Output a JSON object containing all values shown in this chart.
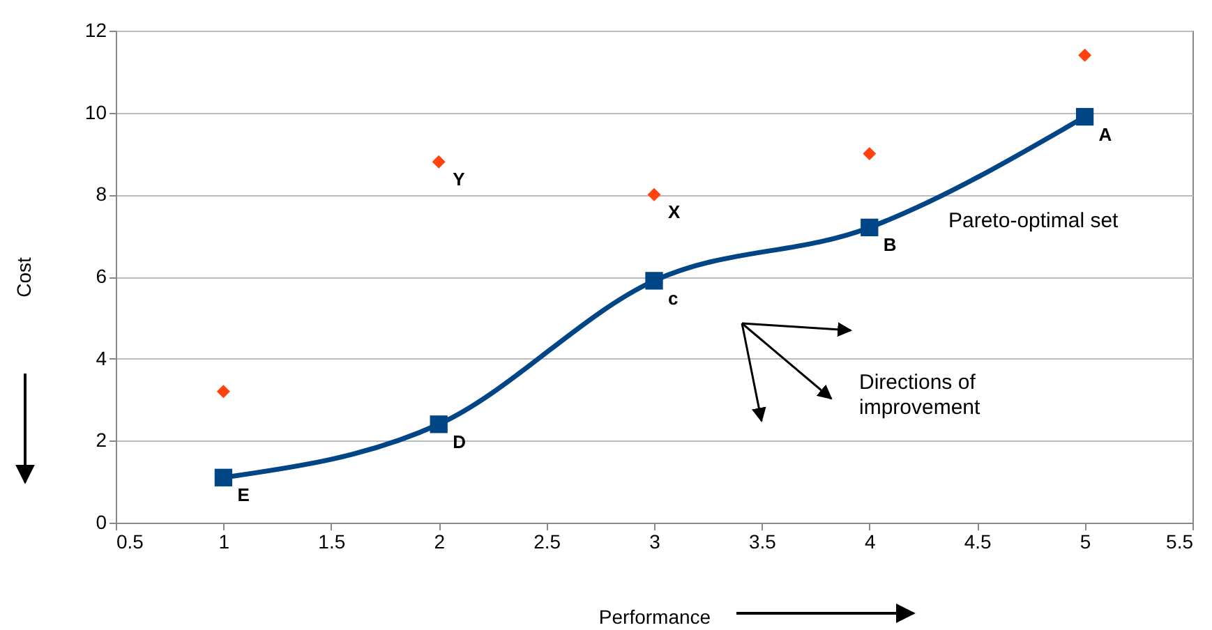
{
  "chart_data": {
    "type": "line",
    "xlabel": "Performance",
    "ylabel": "Cost",
    "x": [
      1,
      2,
      3,
      4,
      5
    ],
    "series": [
      {
        "color": "#004586",
        "values": [
          1.1,
          2.4,
          5.9,
          7.2,
          9.9
        ],
        "marker": "square"
      },
      {
        "type": "scatter",
        "color": "#ff420e",
        "values": [
          3.2,
          8.8,
          8.0,
          9.0,
          11.4
        ],
        "marker": "diamond"
      }
    ],
    "xlim": [
      0.5,
      5.5
    ],
    "xticks": [
      0.5,
      1,
      1.5,
      2,
      2.5,
      3,
      3.5,
      4,
      4.5,
      5,
      5.5
    ],
    "ylim": [
      0,
      12
    ],
    "yticks": [
      0,
      2,
      4,
      6,
      8,
      10,
      12
    ],
    "grid": "y",
    "annotations": [
      {
        "text": "E",
        "x": 1,
        "y": 1.1
      },
      {
        "text": "D",
        "x": 2,
        "y": 2.4
      },
      {
        "text": "c",
        "x": 3,
        "y": 5.9
      },
      {
        "text": "B",
        "x": 4,
        "y": 7.2
      },
      {
        "text": "A",
        "x": 5,
        "y": 9.9
      },
      {
        "text": "Y",
        "x": 2,
        "y": 8.8
      },
      {
        "text": "X",
        "x": 3,
        "y": 8.0
      },
      "Pareto-optimal set",
      "Directions of\nimprovement"
    ]
  }
}
